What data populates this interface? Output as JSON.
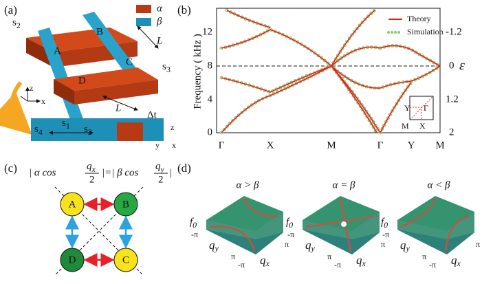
{
  "panels": {
    "a": "(a)",
    "b": "(b)",
    "c": "(c)",
    "d": "(d)"
  },
  "panel_a": {
    "legend": [
      "α",
      "β"
    ],
    "nodes": [
      "A",
      "B",
      "C",
      "D"
    ],
    "s1": {
      "base": "s",
      "sub": "1"
    },
    "s2": {
      "base": "s",
      "sub": "2"
    },
    "s3": {
      "base": "s",
      "sub": "3"
    },
    "s4": {
      "base": "s",
      "sub": "4"
    },
    "length": "L",
    "delta": "Δt",
    "axes": [
      "z",
      "y",
      "x"
    ]
  },
  "panel_b": {
    "y_label": "Frequency ( kHz )",
    "left_ticks": [
      "0",
      "4",
      "8",
      "12"
    ],
    "right_ticks": [
      "-1.2",
      "0",
      "1.2",
      "2"
    ],
    "right_label": "ε",
    "k_points": [
      "Γ",
      "X",
      "M",
      "Γ",
      "Y",
      "M"
    ],
    "legend": [
      "Theory",
      "Simulation"
    ],
    "inset": [
      "Y",
      "Γ",
      "M",
      "X"
    ]
  },
  "panel_c": {
    "eq": [
      "| α cos",
      "q",
      "x",
      "2",
      "|=| β cos",
      "q",
      "y",
      "2",
      "|"
    ],
    "nodes": [
      "A",
      "B",
      "D",
      "C"
    ]
  },
  "panel_d": {
    "titles": [
      "α > β",
      "α = β",
      "α < β"
    ],
    "f": "f",
    "f_sub": "0",
    "neg_pi": "-π",
    "pi": "π",
    "q": "q",
    "qx_sub": "x",
    "qy_sub": "y"
  }
}
